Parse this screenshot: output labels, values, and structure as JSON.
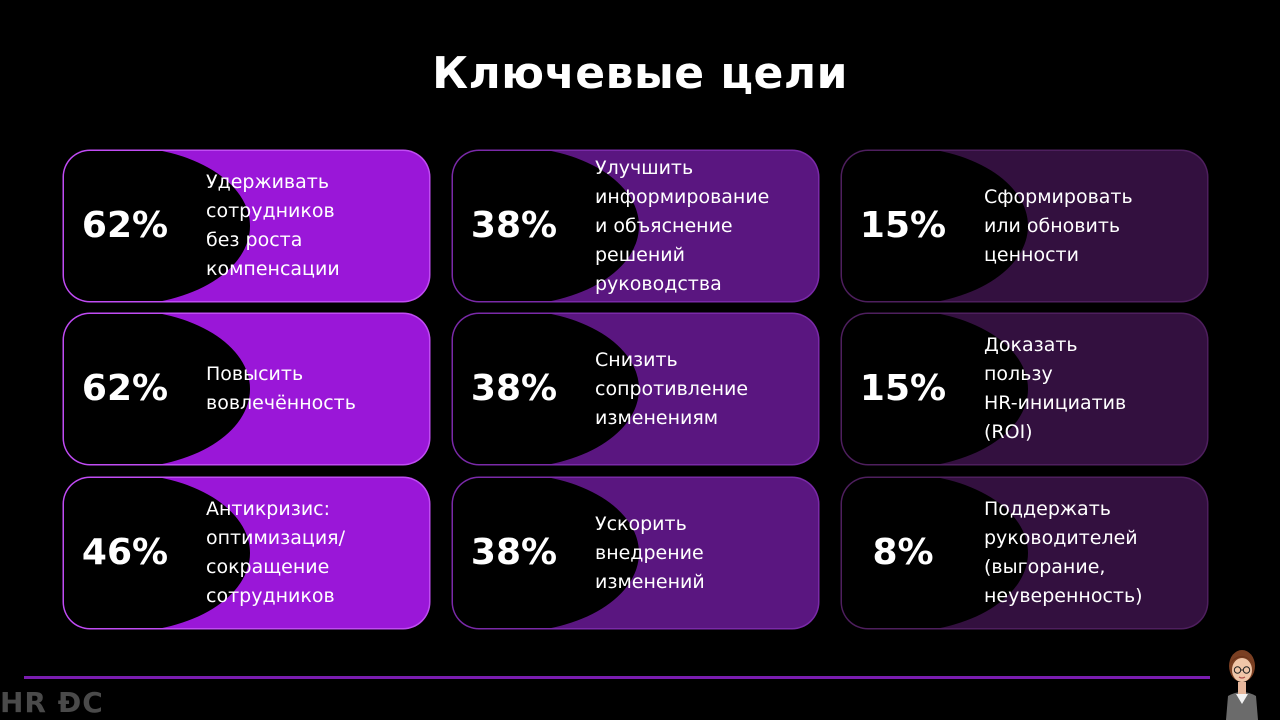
{
  "slide": {
    "title": "Ключевые цели",
    "brand": "HR ĐC"
  },
  "goals": [
    {
      "percent": "62%",
      "label": "Удерживать\nсотрудников\nбез роста\nкомпенсации"
    },
    {
      "percent": "62%",
      "label": "Повысить\nвовлечённость"
    },
    {
      "percent": "46%",
      "label": "Антикризис:\nоптимизация/\nсокращение\nсотрудников"
    },
    {
      "percent": "38%",
      "label": "Улучшить\nинформирование\nи объяснение\nрешений\nруководства"
    },
    {
      "percent": "38%",
      "label": "Снизить\nсопротивление\nизменениям"
    },
    {
      "percent": "38%",
      "label": "Ускорить\nвнедрение\nизменений"
    },
    {
      "percent": "15%",
      "label": "Сформировать\nили обновить\nценности"
    },
    {
      "percent": "15%",
      "label": "Доказать\nпользу\nHR-инициатив\n(ROI)"
    },
    {
      "percent": "8%",
      "label": "Поддержать\nруководителей\n(выгорание,\nнеуверенность)"
    }
  ],
  "colors": {
    "accent_strong": "#9a17d8",
    "accent_mid": "#5a1680",
    "accent_dark": "#33103f",
    "divider": "#7a1db0"
  },
  "icons": [
    "presenter-avatar-icon"
  ]
}
